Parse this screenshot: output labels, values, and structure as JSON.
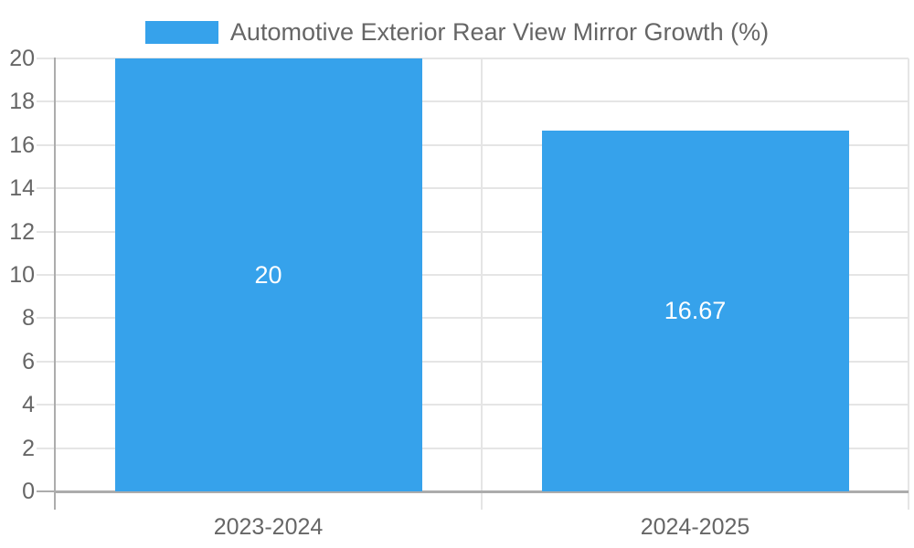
{
  "chart_data": {
    "type": "bar",
    "title": "",
    "legend": {
      "label": "Automotive Exterior Rear View Mirror Growth (%)",
      "position": "top-center"
    },
    "categories": [
      "2023-2024",
      "2024-2025"
    ],
    "series": [
      {
        "name": "Automotive Exterior Rear View Mirror Growth (%)",
        "values": [
          20,
          16.67
        ],
        "value_labels": [
          "20",
          "16.67"
        ]
      }
    ],
    "xlabel": "",
    "ylabel": "",
    "ylim": [
      0,
      20
    ],
    "yticks": [
      0,
      2,
      4,
      6,
      8,
      10,
      12,
      14,
      16,
      18,
      20
    ],
    "grid": true,
    "value_labels_position": "inside-center",
    "colors": {
      "bar": "#36A2EB",
      "text": "#666666",
      "grid": "#E5E5E5",
      "axis": "#ACACAC",
      "value_label": "#FFFFFF",
      "background": "#FFFFFF"
    }
  }
}
